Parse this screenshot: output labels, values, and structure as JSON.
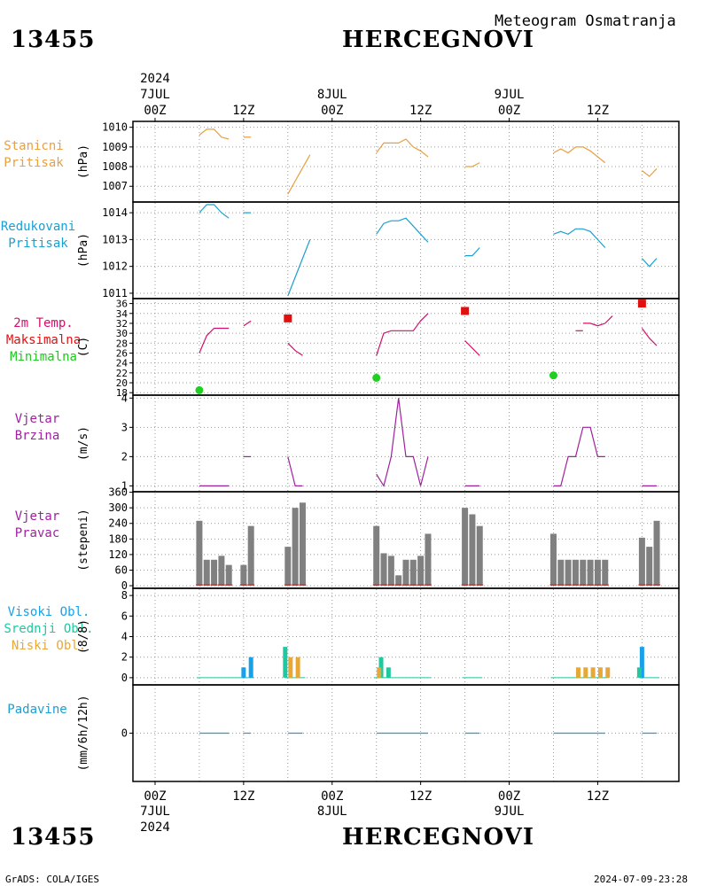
{
  "header": {
    "station_id": "13455",
    "station_name": "HERCEGNOVI",
    "subtitle": "Meteogram Osmatranja",
    "year": "2024"
  },
  "footer": {
    "station_id": "13455",
    "station_name": "HERCEGNOVI",
    "credit": "GrADS: COLA/IGES",
    "timestamp": "2024-07-09-23:28"
  },
  "time_axis": {
    "day_labels": [
      "7JUL",
      "8JUL",
      "9JUL"
    ],
    "tick_labels": [
      "00Z",
      "12Z",
      "00Z",
      "12Z",
      "00Z",
      "12Z"
    ],
    "year": "2024"
  },
  "panels": {
    "pressure": {
      "title1": "Stanicni",
      "title2": "Pritisak",
      "unit": "(hPa)",
      "color": "#e8a040"
    },
    "mslp": {
      "title1": "Redukovani",
      "title2": "Pritisak",
      "unit": "(hPa)",
      "color": "#1aa0d0"
    },
    "temp": {
      "title1": "2m Temp.",
      "title2": "Maksimalna",
      "title3": "Minimalna",
      "unit": "(C)",
      "color": "#d0106a",
      "max_color": "#e01010",
      "min_color": "#20d020"
    },
    "windspeed": {
      "title1": "Vjetar",
      "title2": "Brzina",
      "unit": "(m/s)",
      "color": "#a020a0"
    },
    "winddir": {
      "title1": "Vjetar",
      "title2": "Pravac",
      "unit": "(stepeni)",
      "color": "#a020a0",
      "bar_color": "#808080"
    },
    "clouds": {
      "title1": "Visoki Obl.",
      "title2": "Srednji Obl.",
      "title3": "Niski Obl.",
      "unit": "(8/8)",
      "high_color": "#18a0e8",
      "mid_color": "#20c8a0",
      "low_color": "#e8a838"
    },
    "precip": {
      "title": "Padavine",
      "unit": "(mm/6h/12h)",
      "color": "#1aa0d0"
    }
  },
  "chart_data": [
    {
      "type": "line",
      "name": "pressure",
      "ylim": [
        1006.2,
        1010.3
      ],
      "yticks": [
        1007,
        1008,
        1009,
        1010
      ],
      "ylabel": "(hPa)",
      "segments": [
        [
          [
            6,
            1009.6
          ],
          [
            7,
            1009.9
          ],
          [
            8,
            1009.9
          ],
          [
            9,
            1009.5
          ],
          [
            10,
            1009.4
          ]
        ],
        [
          [
            12,
            1009.5
          ],
          [
            13,
            1009.5
          ]
        ],
        [
          [
            18,
            1006.6
          ],
          [
            21,
            1008.6
          ]
        ],
        [
          [
            30,
            1008.7
          ],
          [
            31,
            1009.2
          ],
          [
            32,
            1009.2
          ],
          [
            33,
            1009.2
          ],
          [
            34,
            1009.4
          ],
          [
            35,
            1009.0
          ],
          [
            36,
            1008.8
          ],
          [
            37,
            1008.5
          ]
        ],
        [
          [
            42,
            1008.0
          ],
          [
            43,
            1008.0
          ],
          [
            44,
            1008.2
          ]
        ],
        [
          [
            54,
            1008.7
          ],
          [
            55,
            1008.9
          ],
          [
            56,
            1008.7
          ],
          [
            57,
            1009.0
          ],
          [
            58,
            1009.0
          ],
          [
            59,
            1008.8
          ],
          [
            60,
            1008.5
          ],
          [
            61,
            1008.2
          ]
        ],
        [
          [
            66,
            1007.8
          ],
          [
            67,
            1007.5
          ],
          [
            68,
            1007.9
          ]
        ]
      ]
    },
    {
      "type": "line",
      "name": "mslp",
      "ylim": [
        1010.8,
        1014.4
      ],
      "yticks": [
        1011,
        1012,
        1013,
        1014
      ],
      "ylabel": "(hPa)",
      "segments": [
        [
          [
            6,
            1014.0
          ],
          [
            7,
            1014.3
          ],
          [
            8,
            1014.3
          ],
          [
            9,
            1014.0
          ],
          [
            10,
            1013.8
          ]
        ],
        [
          [
            12,
            1014.0
          ],
          [
            13,
            1014.0
          ]
        ],
        [
          [
            18,
            1010.9
          ],
          [
            21,
            1013.0
          ]
        ],
        [
          [
            30,
            1013.2
          ],
          [
            31,
            1013.6
          ],
          [
            32,
            1013.7
          ],
          [
            33,
            1013.7
          ],
          [
            34,
            1013.8
          ],
          [
            35,
            1013.5
          ],
          [
            36,
            1013.2
          ],
          [
            37,
            1012.9
          ]
        ],
        [
          [
            42,
            1012.4
          ],
          [
            43,
            1012.4
          ],
          [
            44,
            1012.7
          ]
        ],
        [
          [
            54,
            1013.2
          ],
          [
            55,
            1013.3
          ],
          [
            56,
            1013.2
          ],
          [
            57,
            1013.4
          ],
          [
            58,
            1013.4
          ],
          [
            59,
            1013.3
          ],
          [
            60,
            1013.0
          ],
          [
            61,
            1012.7
          ]
        ],
        [
          [
            66,
            1012.3
          ],
          [
            67,
            1012.0
          ],
          [
            68,
            1012.3
          ]
        ]
      ]
    },
    {
      "type": "line",
      "name": "temperature",
      "ylim": [
        17.5,
        37
      ],
      "yticks": [
        18,
        20,
        22,
        24,
        26,
        28,
        30,
        32,
        34,
        36
      ],
      "ylabel": "(C)",
      "segments": [
        [
          [
            6,
            26
          ],
          [
            7,
            29.5
          ],
          [
            8,
            31
          ],
          [
            9,
            31
          ],
          [
            10,
            31
          ]
        ],
        [
          [
            12,
            31.5
          ],
          [
            13,
            32.5
          ]
        ],
        [
          [
            18,
            28
          ],
          [
            19,
            26.5
          ],
          [
            20,
            25.5
          ]
        ],
        [
          [
            30,
            25.5
          ],
          [
            31,
            30
          ],
          [
            32,
            30.5
          ],
          [
            33,
            30.5
          ],
          [
            34,
            30.5
          ],
          [
            35,
            30.5
          ],
          [
            36,
            32.5
          ],
          [
            37,
            34
          ]
        ],
        [
          [
            42,
            28.5
          ],
          [
            43,
            27
          ],
          [
            44,
            25.5
          ]
        ],
        [
          [
            57,
            30.5
          ],
          [
            58,
            30.5
          ]
        ],
        [
          [
            58,
            32
          ],
          [
            59,
            32
          ],
          [
            60,
            31.5
          ],
          [
            61,
            32
          ],
          [
            62,
            33.5
          ]
        ],
        [
          [
            66,
            31
          ],
          [
            67,
            29
          ],
          [
            68,
            27.5
          ]
        ]
      ],
      "max_points": [
        [
          18,
          33
        ],
        [
          42,
          34.5
        ],
        [
          66,
          36
        ]
      ],
      "min_points": [
        [
          6,
          18.5
        ],
        [
          30,
          21
        ],
        [
          54,
          21.5
        ]
      ]
    },
    {
      "type": "line",
      "name": "wind_speed",
      "ylim": [
        0.8,
        4.1
      ],
      "yticks": [
        1,
        2,
        3,
        4
      ],
      "ylabel": "(m/s)",
      "segments": [
        [
          [
            6,
            1
          ],
          [
            7,
            1
          ],
          [
            8,
            1
          ],
          [
            9,
            1
          ],
          [
            10,
            1
          ]
        ],
        [
          [
            12,
            2
          ],
          [
            13,
            2
          ]
        ],
        [
          [
            18,
            2
          ],
          [
            19,
            1
          ],
          [
            20,
            1
          ]
        ],
        [
          [
            30,
            1.4
          ],
          [
            31,
            1
          ],
          [
            32,
            2
          ],
          [
            33,
            4
          ],
          [
            34,
            2
          ],
          [
            35,
            2
          ],
          [
            36,
            1
          ],
          [
            37,
            2
          ]
        ],
        [
          [
            42,
            1
          ],
          [
            43,
            1
          ],
          [
            44,
            1
          ]
        ],
        [
          [
            54,
            1
          ],
          [
            55,
            1
          ],
          [
            56,
            2
          ],
          [
            57,
            2
          ],
          [
            58,
            3
          ],
          [
            59,
            3
          ],
          [
            60,
            2
          ],
          [
            61,
            2
          ]
        ],
        [
          [
            66,
            1
          ],
          [
            67,
            1
          ],
          [
            68,
            1
          ]
        ]
      ]
    },
    {
      "type": "bar",
      "name": "wind_direction",
      "ylim": [
        -10,
        362
      ],
      "yticks": [
        0,
        60,
        120,
        180,
        240,
        300,
        360
      ],
      "ylabel": "(stepeni)",
      "bars": [
        [
          6,
          250
        ],
        [
          7,
          100
        ],
        [
          8,
          100
        ],
        [
          9,
          115
        ],
        [
          10,
          80
        ],
        [
          12,
          80
        ],
        [
          13,
          230
        ],
        [
          18,
          150
        ],
        [
          19,
          300
        ],
        [
          20,
          320
        ],
        [
          30,
          230
        ],
        [
          31,
          125
        ],
        [
          32,
          115
        ],
        [
          33,
          40
        ],
        [
          34,
          100
        ],
        [
          35,
          100
        ],
        [
          36,
          115
        ],
        [
          37,
          200
        ],
        [
          42,
          300
        ],
        [
          43,
          275
        ],
        [
          44,
          230
        ],
        [
          54,
          200
        ],
        [
          55,
          100
        ],
        [
          56,
          100
        ],
        [
          57,
          100
        ],
        [
          58,
          100
        ],
        [
          59,
          100
        ],
        [
          60,
          100
        ],
        [
          61,
          100
        ],
        [
          66,
          185
        ],
        [
          67,
          150
        ],
        [
          68,
          250
        ]
      ]
    },
    {
      "type": "bar",
      "name": "cloud_cover",
      "ylim": [
        -0.7,
        8.7
      ],
      "yticks": [
        0,
        2,
        4,
        6,
        8
      ],
      "ylabel": "(8/8)",
      "series": [
        {
          "name": "Visoki Obl.",
          "values": [
            [
              12,
              1
            ],
            [
              13,
              2
            ],
            [
              19,
              0
            ],
            [
              66,
              3
            ]
          ]
        },
        {
          "name": "Srednji Obl.",
          "values": [
            [
              18,
              3
            ],
            [
              31,
              2
            ],
            [
              32,
              1
            ],
            [
              66,
              1
            ]
          ]
        },
        {
          "name": "Niski Obl.",
          "values": [
            [
              18,
              2
            ],
            [
              19,
              2
            ],
            [
              30,
              1
            ],
            [
              57,
              1
            ],
            [
              58,
              1
            ],
            [
              59,
              1
            ],
            [
              60,
              1
            ],
            [
              61,
              1
            ]
          ]
        }
      ]
    },
    {
      "type": "line",
      "name": "precipitation",
      "ylim": [
        -5,
        5
      ],
      "yticks": [
        0
      ],
      "ylabel": "(mm/6h/12h)",
      "segments": [
        [
          [
            6,
            0
          ],
          [
            10,
            0
          ]
        ],
        [
          [
            12,
            0
          ],
          [
            13,
            0
          ]
        ],
        [
          [
            18,
            0
          ],
          [
            20,
            0
          ]
        ],
        [
          [
            30,
            0
          ],
          [
            37,
            0
          ]
        ],
        [
          [
            42,
            0
          ],
          [
            44,
            0
          ]
        ],
        [
          [
            54,
            0
          ],
          [
            61,
            0
          ]
        ],
        [
          [
            66,
            0
          ],
          [
            68,
            0
          ]
        ]
      ]
    }
  ]
}
